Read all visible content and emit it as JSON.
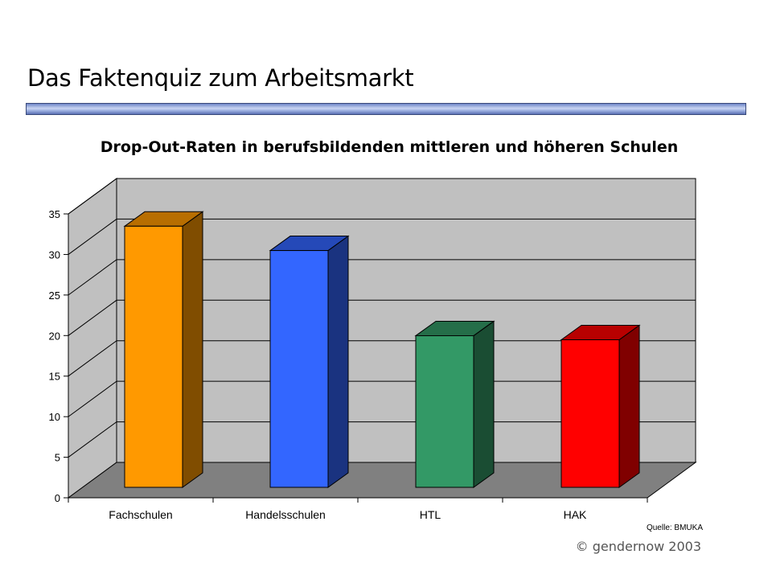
{
  "slide": {
    "title": "Das Faktenquiz zum Arbeitsmarkt",
    "source": "Quelle: BMUKA",
    "copyright": "© gendernow 2003"
  },
  "chart_data": {
    "type": "bar",
    "title": "Drop-Out-Raten in berufsbildenden mittleren und höheren Schulen",
    "categories": [
      "Fachschulen",
      "Handelsschulen",
      "HTL",
      "HAK"
    ],
    "values": [
      31.5,
      28.5,
      18,
      17.5
    ],
    "xlabel": "",
    "ylabel": "",
    "ylim": [
      0,
      35
    ],
    "yticks": [
      0,
      5,
      10,
      15,
      20,
      25,
      30,
      35
    ],
    "grid": true,
    "legend": "none",
    "style": "3d",
    "colors": [
      "#FF9900",
      "#3366FF",
      "#339966",
      "#FF0000"
    ],
    "background_color": "#C0C0C0",
    "floor_color": "#808080"
  }
}
